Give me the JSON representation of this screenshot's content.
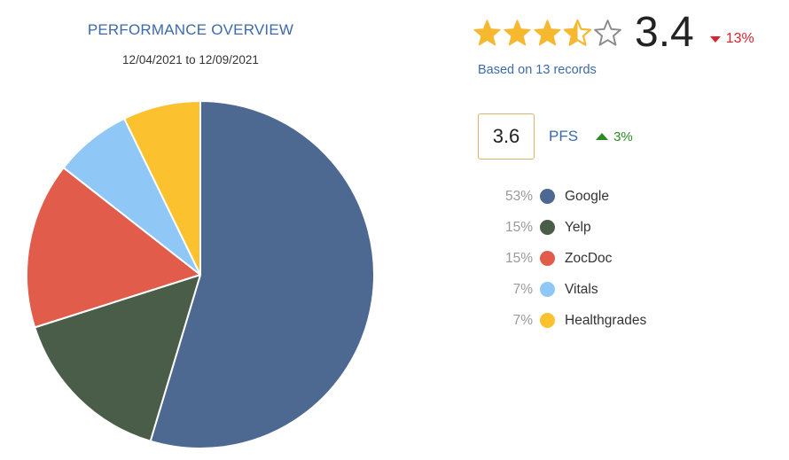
{
  "header": {
    "title": "PERFORMANCE OVERVIEW",
    "date_range": "12/04/2021 to 12/09/2021"
  },
  "rating": {
    "stars": 3.5,
    "stars_max": 5,
    "score": "3.4",
    "change": "13%",
    "change_direction": "down",
    "records_text": "Based on 13 records"
  },
  "pfs": {
    "value": "3.6",
    "label": "PFS",
    "change": "3%",
    "change_direction": "up"
  },
  "colors": {
    "star_fill": "#f5b82e",
    "star_empty_stroke": "#8a8a8a",
    "down": "#d9232e",
    "up": "#2c8a22",
    "accent": "#3d6aa8"
  },
  "chart_data": {
    "type": "pie",
    "categories": [
      "Google",
      "Yelp",
      "ZocDoc",
      "Vitals",
      "Healthgrades"
    ],
    "values": [
      53,
      15,
      15,
      7,
      7
    ],
    "labels": [
      "53%",
      "15%",
      "15%",
      "7%",
      "7%"
    ],
    "colors": [
      "#4d6891",
      "#4a5d48",
      "#e15c4a",
      "#8fc7f7",
      "#fbc12f"
    ],
    "legend_position": "right"
  }
}
